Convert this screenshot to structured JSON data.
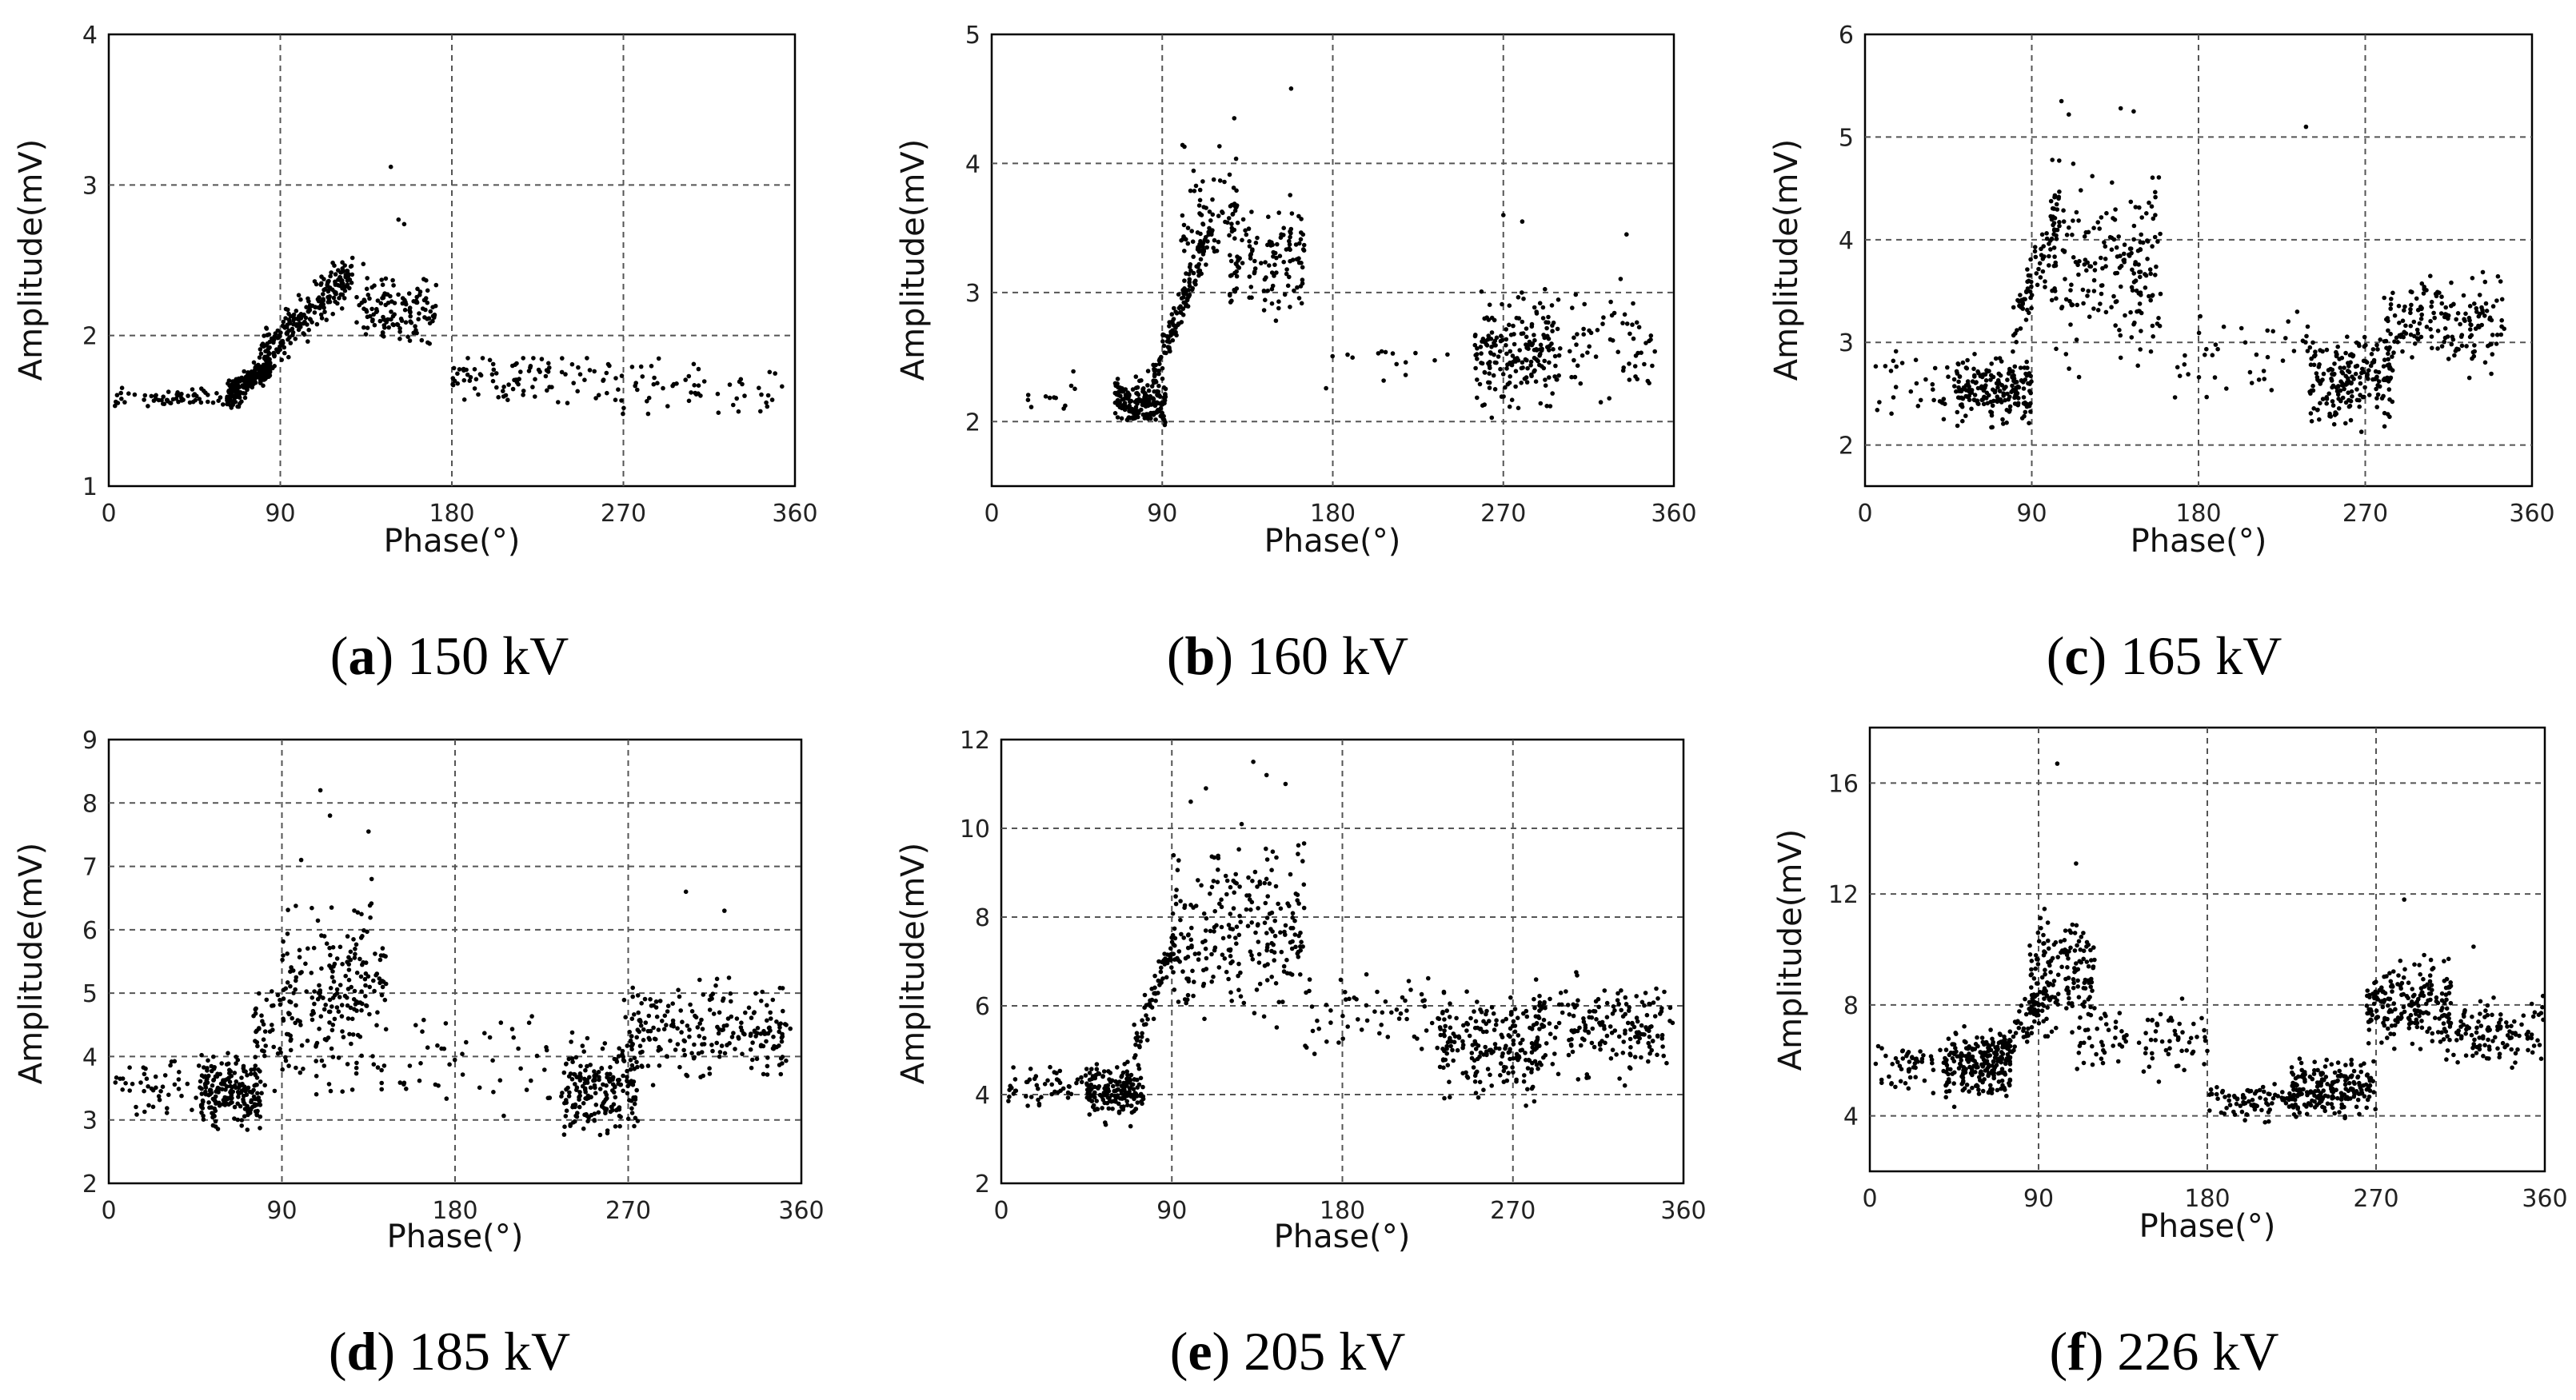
{
  "chart_data": [
    {
      "type": "scatter",
      "panel": "a",
      "caption_rest": " 150 kV",
      "xlabel": "Phase(°)",
      "ylabel": "Amplitude(mV)",
      "xlim": [
        0,
        360
      ],
      "ylim": [
        1,
        4
      ],
      "xticks": [
        0,
        90,
        180,
        270,
        360
      ],
      "yticks": [
        1,
        2,
        3,
        4
      ],
      "clusters": [
        {
          "x": [
            2,
            70
          ],
          "y": [
            1.48,
            1.68
          ],
          "n": 70
        },
        {
          "x": [
            62,
            85
          ],
          "y": [
            1.5,
            1.9
          ],
          "n": 220,
          "trend": 0.5
        },
        {
          "x": [
            78,
            128
          ],
          "y": [
            1.65,
            2.6
          ],
          "n": 230,
          "trend": 0.6
        },
        {
          "x": [
            130,
            172
          ],
          "y": [
            1.85,
            2.5
          ],
          "n": 130
        },
        {
          "x": [
            180,
            360
          ],
          "y": [
            1.48,
            1.85
          ],
          "n": 150,
          "trend": -0.35
        }
      ],
      "outliers": [
        [
          148,
          3.12
        ],
        [
          152,
          2.77
        ],
        [
          155,
          2.74
        ]
      ]
    },
    {
      "type": "scatter",
      "panel": "b",
      "caption_rest": " 160 kV",
      "xlabel": "Phase(°)",
      "ylabel": "Amplitude(mV)",
      "xlim": [
        0,
        360
      ],
      "ylim": [
        1.5,
        5
      ],
      "xticks": [
        0,
        90,
        180,
        270,
        360
      ],
      "yticks": [
        2,
        3,
        4,
        5
      ],
      "clusters": [
        {
          "x": [
            15,
            45
          ],
          "y": [
            2.0,
            2.4
          ],
          "n": 12
        },
        {
          "x": [
            65,
            92
          ],
          "y": [
            1.9,
            2.4
          ],
          "n": 180
        },
        {
          "x": [
            85,
            115
          ],
          "y": [
            2.2,
            3.6
          ],
          "n": 140,
          "trend": 0.8
        },
        {
          "x": [
            100,
            130
          ],
          "y": [
            2.8,
            4.4
          ],
          "n": 70
        },
        {
          "x": [
            125,
            165
          ],
          "y": [
            2.6,
            3.9
          ],
          "n": 130
        },
        {
          "x": [
            175,
            250
          ],
          "y": [
            2.2,
            2.8
          ],
          "n": 15
        },
        {
          "x": [
            255,
            300
          ],
          "y": [
            1.95,
            3.1
          ],
          "n": 200
        },
        {
          "x": [
            305,
            350
          ],
          "y": [
            2.0,
            3.2
          ],
          "n": 60
        }
      ],
      "outliers": [
        [
          158,
          4.58
        ],
        [
          128,
          4.35
        ],
        [
          270,
          3.6
        ],
        [
          280,
          3.55
        ],
        [
          335,
          3.45
        ]
      ]
    },
    {
      "type": "scatter",
      "panel": "c",
      "caption_rest": " 165 kV",
      "xlabel": "Phase(°)",
      "ylabel": "Amplitude(mV)",
      "xlim": [
        0,
        360
      ],
      "ylim": [
        1.6,
        6
      ],
      "xticks": [
        0,
        90,
        180,
        270,
        360
      ],
      "yticks": [
        2,
        3,
        4,
        5,
        6
      ],
      "clusters": [
        {
          "x": [
            5,
            50
          ],
          "y": [
            2.0,
            3.0
          ],
          "n": 30
        },
        {
          "x": [
            48,
            90
          ],
          "y": [
            2.1,
            3.0
          ],
          "n": 200
        },
        {
          "x": [
            80,
            105
          ],
          "y": [
            2.8,
            4.6
          ],
          "n": 80,
          "trend": 0.6
        },
        {
          "x": [
            100,
            160
          ],
          "y": [
            2.4,
            5.0
          ],
          "n": 200
        },
        {
          "x": [
            165,
            240
          ],
          "y": [
            2.2,
            3.5
          ],
          "n": 40
        },
        {
          "x": [
            240,
            285
          ],
          "y": [
            2.05,
            3.2
          ],
          "n": 200
        },
        {
          "x": [
            280,
            345
          ],
          "y": [
            2.6,
            3.8
          ],
          "n": 170
        }
      ],
      "outliers": [
        [
          106,
          5.35
        ],
        [
          110,
          5.22
        ],
        [
          138,
          5.28
        ],
        [
          145,
          5.25
        ],
        [
          238,
          5.1
        ]
      ]
    },
    {
      "type": "scatter",
      "panel": "d",
      "caption_rest": " 185 kV",
      "xlabel": "Phase(°)",
      "ylabel": "Amplitude(mV)",
      "xlim": [
        0,
        360
      ],
      "ylim": [
        2,
        9
      ],
      "xticks": [
        0,
        90,
        180,
        270,
        360
      ],
      "yticks": [
        2,
        3,
        4,
        5,
        6,
        7,
        8,
        9
      ],
      "clusters": [
        {
          "x": [
            3,
            50
          ],
          "y": [
            2.8,
            4.2
          ],
          "n": 50
        },
        {
          "x": [
            48,
            80
          ],
          "y": [
            2.6,
            4.2
          ],
          "n": 200
        },
        {
          "x": [
            75,
            95
          ],
          "y": [
            3.2,
            5.5
          ],
          "n": 50
        },
        {
          "x": [
            90,
            145
          ],
          "y": [
            3.0,
            7.0
          ],
          "n": 220
        },
        {
          "x": [
            150,
            230
          ],
          "y": [
            2.8,
            5.0
          ],
          "n": 45
        },
        {
          "x": [
            235,
            275
          ],
          "y": [
            2.5,
            4.5
          ],
          "n": 200
        },
        {
          "x": [
            265,
            355
          ],
          "y": [
            3.4,
            5.4
          ],
          "n": 230
        }
      ],
      "outliers": [
        [
          110,
          8.2
        ],
        [
          115,
          7.8
        ],
        [
          135,
          7.55
        ],
        [
          100,
          7.1
        ],
        [
          300,
          6.6
        ],
        [
          320,
          6.3
        ]
      ]
    },
    {
      "type": "scatter",
      "panel": "e",
      "caption_rest": " 205 kV",
      "xlabel": "Phase(°)",
      "ylabel": "Amplitude(mV)",
      "xlim": [
        0,
        360
      ],
      "ylim": [
        2,
        12
      ],
      "xticks": [
        0,
        90,
        180,
        270,
        360
      ],
      "yticks": [
        2,
        4,
        6,
        8,
        10,
        12
      ],
      "clusters": [
        {
          "x": [
            3,
            45
          ],
          "y": [
            3.5,
            4.8
          ],
          "n": 50
        },
        {
          "x": [
            45,
            75
          ],
          "y": [
            3.2,
            5.0
          ],
          "n": 180
        },
        {
          "x": [
            70,
            92
          ],
          "y": [
            4.5,
            8.0
          ],
          "n": 70,
          "trend": 0.7
        },
        {
          "x": [
            90,
            160
          ],
          "y": [
            5.0,
            10.5
          ],
          "n": 240
        },
        {
          "x": [
            160,
            235
          ],
          "y": [
            4.5,
            7.0
          ],
          "n": 60
        },
        {
          "x": [
            230,
            285
          ],
          "y": [
            3.5,
            6.5
          ],
          "n": 200
        },
        {
          "x": [
            280,
            355
          ],
          "y": [
            4.0,
            7.0
          ],
          "n": 200
        }
      ],
      "outliers": [
        [
          133,
          11.5
        ],
        [
          140,
          11.2
        ],
        [
          150,
          11.0
        ],
        [
          100,
          10.6
        ],
        [
          108,
          10.9
        ]
      ]
    },
    {
      "type": "scatter",
      "panel": "f",
      "caption_rest": " 226 kV",
      "xlabel": "Phase(°)",
      "ylabel": "Amplitude(mV)",
      "xlim": [
        0,
        360
      ],
      "ylim": [
        2,
        18
      ],
      "xticks": [
        0,
        90,
        180,
        270,
        360
      ],
      "yticks": [
        4,
        8,
        12,
        16
      ],
      "clusters": [
        {
          "x": [
            3,
            45
          ],
          "y": [
            4.5,
            7.0
          ],
          "n": 60
        },
        {
          "x": [
            40,
            75
          ],
          "y": [
            4.2,
            7.5
          ],
          "n": 200
        },
        {
          "x": [
            65,
            95
          ],
          "y": [
            5.0,
            9.5
          ],
          "n": 80,
          "trend": 0.6
        },
        {
          "x": [
            85,
            120
          ],
          "y": [
            6.0,
            12.0
          ],
          "n": 160
        },
        {
          "x": [
            110,
            180
          ],
          "y": [
            5.0,
            8.5
          ],
          "n": 90
        },
        {
          "x": [
            180,
            230
          ],
          "y": [
            3.6,
            5.5
          ],
          "n": 90
        },
        {
          "x": [
            225,
            270
          ],
          "y": [
            3.5,
            6.5
          ],
          "n": 190
        },
        {
          "x": [
            265,
            310
          ],
          "y": [
            6.0,
            10.0
          ],
          "n": 200
        },
        {
          "x": [
            305,
            360
          ],
          "y": [
            5.5,
            8.5
          ],
          "n": 120
        }
      ],
      "outliers": [
        [
          100,
          16.7
        ],
        [
          110,
          13.1
        ],
        [
          285,
          11.8
        ],
        [
          322,
          10.1
        ]
      ]
    }
  ]
}
